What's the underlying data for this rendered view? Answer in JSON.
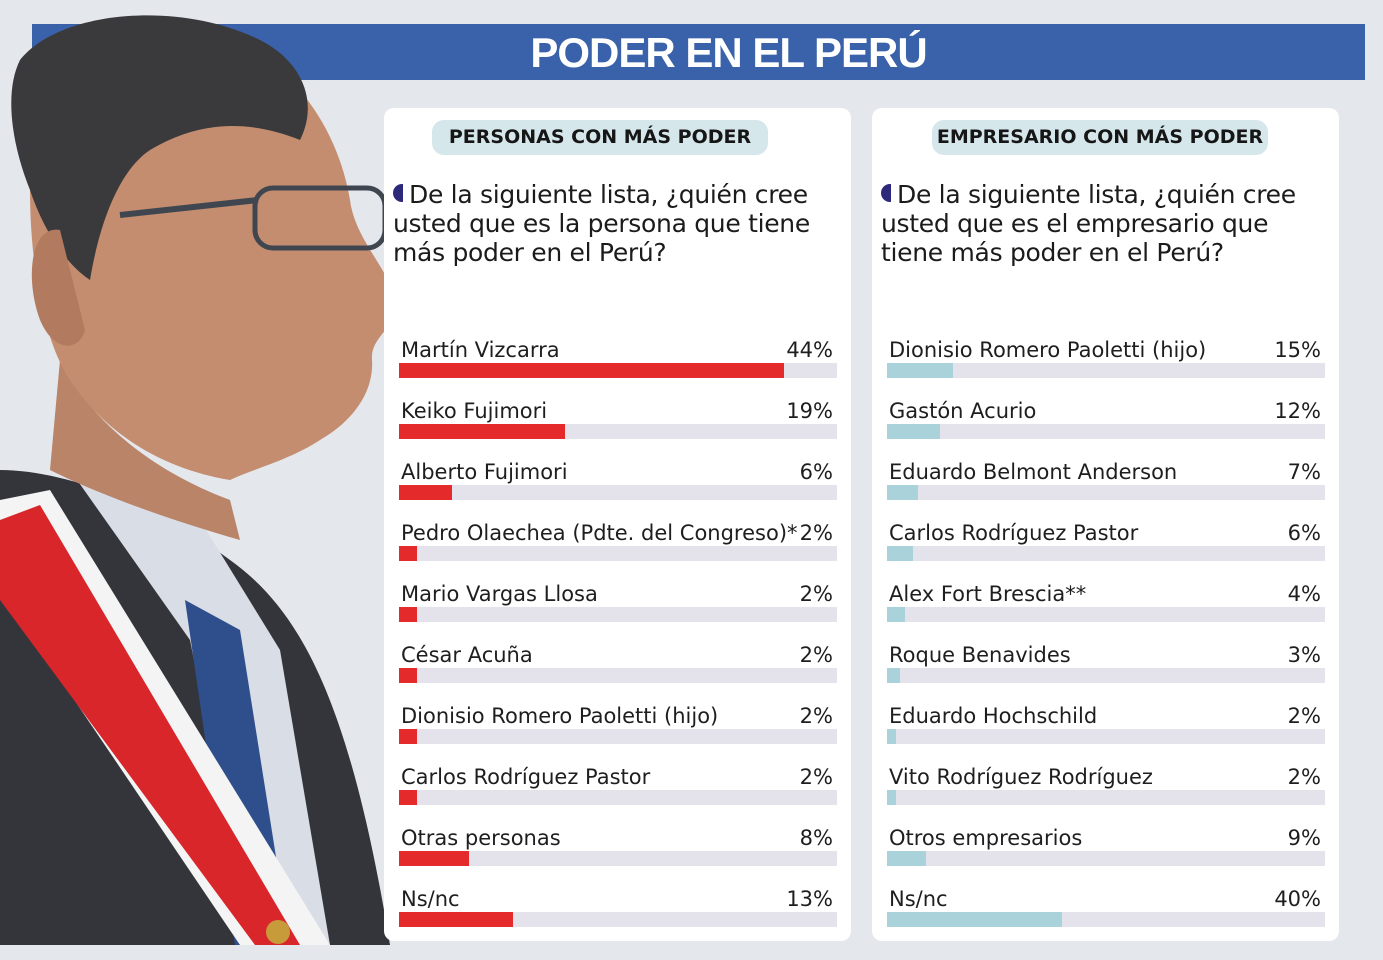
{
  "title": "PODER EN EL PERÚ",
  "colors": {
    "banner": "#3a62aa",
    "left_bar": "#e42a2a",
    "right_bar": "#a9d2da",
    "track": "#e4e2ea"
  },
  "chart_data": [
    {
      "type": "bar",
      "orientation": "horizontal",
      "header": "PERSONAS CON MÁS PODER",
      "question": "De la siguiente lista, ¿quién cree usted que es la persona que tiene más poder en el Perú?",
      "unit": "%",
      "xlim": [
        0,
        50
      ],
      "categories": [
        "Martín Vizcarra",
        "Keiko Fujimori",
        "Alberto Fujimori",
        "Pedro Olaechea (Pdte. del Congreso)*",
        "Mario Vargas Llosa",
        "César Acuña",
        "Dionisio Romero Paoletti  (hijo)",
        "Carlos Rodríguez Pastor",
        "Otras personas",
        "Ns/nc"
      ],
      "values": [
        44,
        19,
        6,
        2,
        2,
        2,
        2,
        2,
        8,
        13
      ],
      "labels": [
        "44%",
        "19%",
        "6%",
        "2%",
        "2%",
        "2%",
        "2%",
        "2%",
        "8%",
        "13%"
      ]
    },
    {
      "type": "bar",
      "orientation": "horizontal",
      "header": "EMPRESARIO CON MÁS PODER",
      "question": "De la siguiente lista, ¿quién cree usted que es el empresario que tiene más poder en el Perú?",
      "unit": "%",
      "xlim": [
        0,
        100
      ],
      "categories": [
        "Dionisio Romero Paoletti (hijo)",
        "Gastón Acurio",
        "Eduardo Belmont Anderson",
        "Carlos Rodríguez Pastor",
        "Alex Fort Brescia**",
        "Roque Benavides",
        "Eduardo Hochschild",
        "Vito Rodríguez Rodríguez",
        "Otros empresarios",
        "Ns/nc"
      ],
      "values": [
        15,
        12,
        7,
        6,
        4,
        3,
        2,
        2,
        9,
        40
      ],
      "labels": [
        "15%",
        "12%",
        "7%",
        "6%",
        "4%",
        "3%",
        "2%",
        "2%",
        "9%",
        "40%"
      ]
    }
  ]
}
